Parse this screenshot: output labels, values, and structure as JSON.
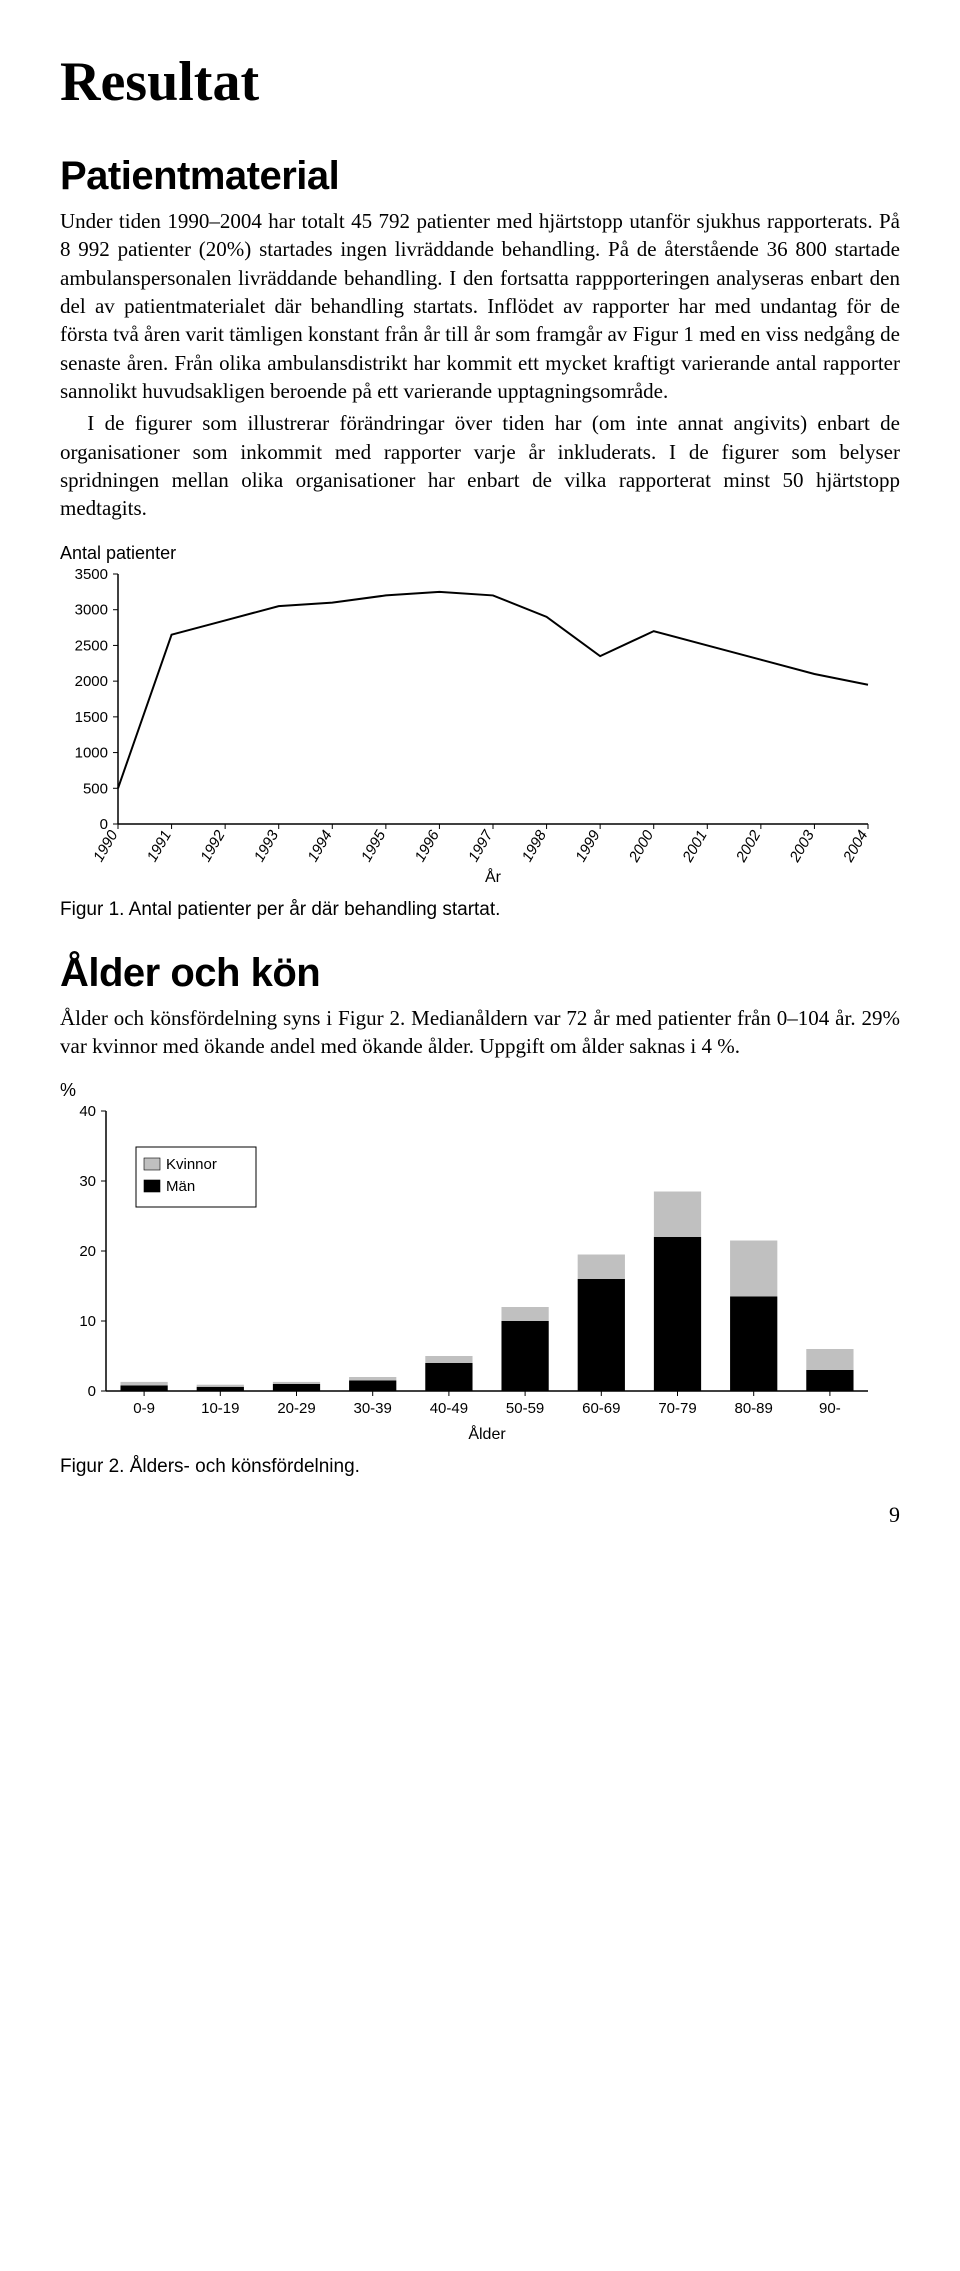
{
  "page": {
    "title": "Resultat",
    "footer_page_number": "9"
  },
  "section1": {
    "heading": "Patientmaterial",
    "p1": "Under tiden 1990–2004 har totalt 45 792 patienter med hjärtstopp utanför sjukhus rapporterats. På 8 992 patienter (20%) startades ingen livräddande behandling. På de återstående 36 800 startade ambulanspersonalen livräddande behandling. I den fortsatta rappporteringen analyseras enbart den del av patientmaterialet där behandling startats. Inflödet av rapporter har med undantag för de första två åren varit tämligen konstant från år till år som framgår av Figur 1 med en viss nedgång de senaste åren. Från olika ambulansdistrikt har kommit ett mycket kraftigt varierande antal rapporter sannolikt huvudsakligen beroende på ett varierande upptagningsområde.",
    "p2": "I de figurer som illustrerar förändringar över tiden har (om inte annat angivits) enbart de organisationer som inkommit med rapporter varje år inkluderats. I de figurer som belyser spridningen mellan olika organisationer har enbart de vilka rapporterat minst 50 hjärtstopp medtagits."
  },
  "figure1": {
    "type": "line",
    "y_axis_title": "Antal patienter",
    "x_axis_title": "År",
    "caption": "Figur 1. Antal patienter per år där behandling startat.",
    "categories": [
      "1990",
      "1991",
      "1992",
      "1993",
      "1994",
      "1995",
      "1996",
      "1997",
      "1998",
      "1999",
      "2000",
      "2001",
      "2002",
      "2003",
      "2004"
    ],
    "values": [
      500,
      2650,
      2850,
      3050,
      3100,
      3200,
      3250,
      3200,
      2900,
      2350,
      2700,
      2500,
      2300,
      2100,
      1950
    ],
    "ylim": [
      0,
      3500
    ],
    "ytick_step": 500,
    "line_color": "#000000",
    "background_color": "#ffffff",
    "axis_color": "#000000",
    "tick_font_size": 15,
    "line_width": 2
  },
  "section2": {
    "heading": "Ålder och kön",
    "p1": "Ålder och könsfördelning syns i Figur 2. Medianåldern var 72 år med patienter från 0–104 år. 29% var kvinnor med ökande andel med ökande ålder. Uppgift om ålder saknas i 4 %."
  },
  "figure2": {
    "type": "stacked-bar",
    "y_axis_title": "%",
    "x_axis_title": "Ålder",
    "caption": "Figur 2. Ålders- och könsfördelning.",
    "categories": [
      "0-9",
      "10-19",
      "20-29",
      "30-39",
      "40-49",
      "50-59",
      "60-69",
      "70-79",
      "80-89",
      "90-"
    ],
    "series": [
      {
        "name": "Kvinnor",
        "color": "#c0c0c0",
        "values": [
          0.5,
          0.3,
          0.3,
          0.5,
          1.0,
          2.0,
          3.5,
          6.5,
          8.0,
          3.0
        ]
      },
      {
        "name": "Män",
        "color": "#000000",
        "values": [
          0.8,
          0.6,
          1.0,
          1.5,
          4.0,
          10.0,
          16.0,
          22.0,
          13.5,
          3.0
        ]
      }
    ],
    "ylim": [
      0,
      40
    ],
    "ytick_step": 10,
    "bar_width": 0.62,
    "background_color": "#ffffff",
    "axis_color": "#000000",
    "legend_box_stroke": "#000000",
    "tick_font_size": 15
  }
}
